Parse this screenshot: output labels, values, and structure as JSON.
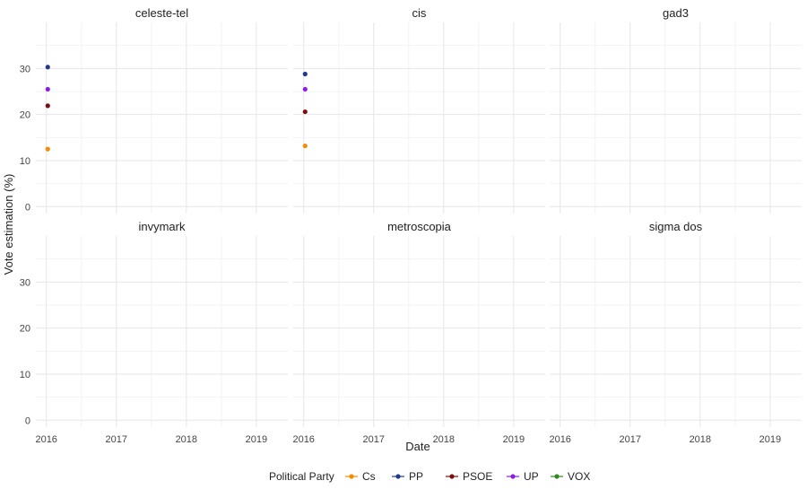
{
  "chart_data": {
    "type": "scatter",
    "xlabel": "Date",
    "ylabel": "Vote estimation (%)",
    "xlim": [
      2015.85,
      2019.45
    ],
    "ylim": [
      -1.5,
      40
    ],
    "x_ticks": [
      2016,
      2017,
      2018,
      2019
    ],
    "x_tick_labels": [
      "2016",
      "2017",
      "2018",
      "2019"
    ],
    "y_ticks": [
      0,
      10,
      20,
      30
    ],
    "y_tick_labels": [
      "0",
      "10",
      "20",
      "30"
    ],
    "grid": true,
    "legend": {
      "title": "Political Party",
      "position": "bottom",
      "entries": [
        {
          "name": "Cs",
          "color": "#F28C00"
        },
        {
          "name": "PP",
          "color": "#1F3A8A"
        },
        {
          "name": "PSOE",
          "color": "#7A0F0F"
        },
        {
          "name": "UP",
          "color": "#8A1CE8"
        },
        {
          "name": "VOX",
          "color": "#2E8B1E"
        }
      ]
    },
    "panels": [
      {
        "title": "celeste-tel",
        "points": [
          {
            "series": "PP",
            "x": 2016.02,
            "y": 30.3
          },
          {
            "series": "UP",
            "x": 2016.02,
            "y": 25.5
          },
          {
            "series": "PSOE",
            "x": 2016.02,
            "y": 21.9
          },
          {
            "series": "Cs",
            "x": 2016.02,
            "y": 12.5
          }
        ]
      },
      {
        "title": "cis",
        "points": [
          {
            "series": "PP",
            "x": 2016.02,
            "y": 28.8
          },
          {
            "series": "UP",
            "x": 2016.02,
            "y": 25.5
          },
          {
            "series": "PSOE",
            "x": 2016.02,
            "y": 20.6
          },
          {
            "series": "Cs",
            "x": 2016.02,
            "y": 13.2
          }
        ]
      },
      {
        "title": "gad3",
        "points": []
      },
      {
        "title": "invymark",
        "points": []
      },
      {
        "title": "metroscopia",
        "points": []
      },
      {
        "title": "sigma dos",
        "points": []
      }
    ]
  }
}
